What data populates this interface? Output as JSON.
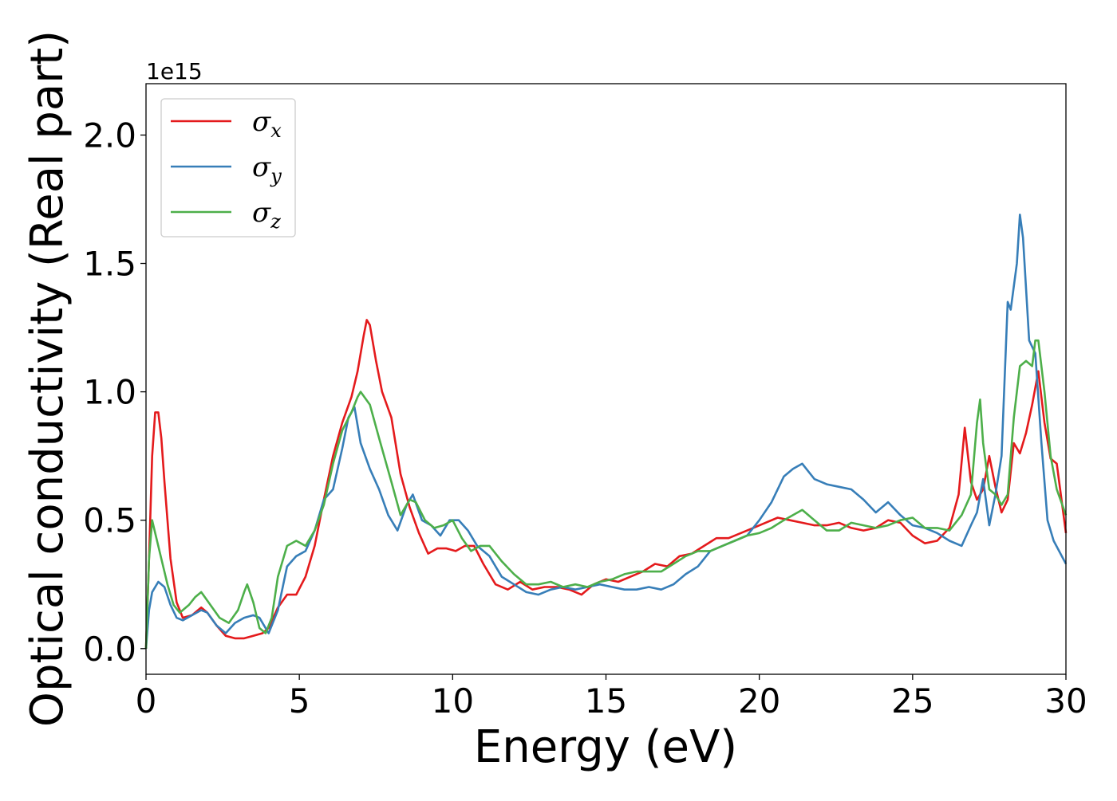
{
  "chart_data": {
    "type": "line",
    "title": "",
    "xlabel": "Energy (eV)",
    "ylabel": "Optical conductivity (Real part)",
    "offset_text": "1e15",
    "xlim": [
      0,
      30
    ],
    "ylim": [
      -0.1,
      2.2
    ],
    "y_scale_factor": "1e15",
    "xticks": [
      "0",
      "5",
      "10",
      "15",
      "20",
      "25",
      "30"
    ],
    "yticks": [
      "0.0",
      "0.5",
      "1.0",
      "1.5",
      "2.0"
    ],
    "xtick_values": [
      0,
      5,
      10,
      15,
      20,
      25,
      30
    ],
    "ytick_values": [
      0.0,
      0.5,
      1.0,
      1.5,
      2.0
    ],
    "grid": false,
    "legend_position": "top-left",
    "series": [
      {
        "name": "σx",
        "base": "σ",
        "sub": "x",
        "color": "#e41a1c",
        "x": [
          0,
          0.1,
          0.2,
          0.3,
          0.4,
          0.5,
          0.6,
          0.8,
          1.0,
          1.2,
          1.5,
          1.8,
          2.0,
          2.3,
          2.6,
          2.9,
          3.2,
          3.5,
          3.8,
          4.0,
          4.3,
          4.6,
          4.9,
          5.2,
          5.5,
          5.8,
          6.1,
          6.4,
          6.7,
          6.9,
          7.1,
          7.2,
          7.3,
          7.5,
          7.7,
          8.0,
          8.3,
          8.6,
          8.9,
          9.2,
          9.5,
          9.8,
          10.1,
          10.4,
          10.7,
          11.0,
          11.4,
          11.8,
          12.2,
          12.6,
          13.0,
          13.4,
          13.8,
          14.2,
          14.6,
          15.0,
          15.4,
          15.8,
          16.2,
          16.6,
          17.0,
          17.4,
          17.8,
          18.2,
          18.6,
          19.0,
          19.4,
          19.8,
          20.2,
          20.6,
          21.0,
          21.4,
          21.8,
          22.2,
          22.6,
          23.0,
          23.4,
          23.8,
          24.2,
          24.6,
          25.0,
          25.4,
          25.8,
          26.2,
          26.5,
          26.7,
          26.9,
          27.1,
          27.3,
          27.5,
          27.7,
          27.9,
          28.1,
          28.3,
          28.5,
          28.7,
          28.9,
          29.1,
          29.3,
          29.5,
          29.7,
          30.0
        ],
        "y": [
          0.0,
          0.35,
          0.75,
          0.92,
          0.92,
          0.82,
          0.65,
          0.35,
          0.18,
          0.12,
          0.13,
          0.16,
          0.14,
          0.09,
          0.05,
          0.04,
          0.04,
          0.05,
          0.06,
          0.08,
          0.16,
          0.21,
          0.21,
          0.28,
          0.4,
          0.58,
          0.75,
          0.88,
          0.98,
          1.08,
          1.22,
          1.28,
          1.26,
          1.12,
          1.0,
          0.9,
          0.68,
          0.55,
          0.45,
          0.37,
          0.39,
          0.39,
          0.38,
          0.4,
          0.4,
          0.33,
          0.25,
          0.23,
          0.26,
          0.23,
          0.24,
          0.24,
          0.23,
          0.21,
          0.25,
          0.27,
          0.26,
          0.28,
          0.3,
          0.33,
          0.32,
          0.36,
          0.37,
          0.4,
          0.43,
          0.43,
          0.45,
          0.47,
          0.49,
          0.51,
          0.5,
          0.49,
          0.48,
          0.48,
          0.49,
          0.47,
          0.46,
          0.47,
          0.5,
          0.49,
          0.44,
          0.41,
          0.42,
          0.47,
          0.6,
          0.86,
          0.65,
          0.58,
          0.62,
          0.75,
          0.63,
          0.53,
          0.58,
          0.8,
          0.76,
          0.84,
          0.95,
          1.08,
          0.88,
          0.74,
          0.72,
          0.45
        ]
      },
      {
        "name": "σy",
        "base": "σ",
        "sub": "y",
        "color": "#377eb8",
        "x": [
          0,
          0.1,
          0.2,
          0.4,
          0.6,
          0.8,
          1.0,
          1.2,
          1.5,
          1.8,
          2.0,
          2.3,
          2.6,
          2.9,
          3.2,
          3.5,
          3.7,
          4.0,
          4.3,
          4.6,
          4.9,
          5.2,
          5.5,
          5.8,
          6.1,
          6.4,
          6.6,
          6.8,
          7.0,
          7.3,
          7.6,
          7.9,
          8.2,
          8.5,
          8.7,
          9.0,
          9.3,
          9.6,
          9.9,
          10.2,
          10.5,
          10.8,
          11.2,
          11.6,
          12.0,
          12.4,
          12.8,
          13.2,
          13.6,
          14.0,
          14.4,
          14.8,
          15.2,
          15.6,
          16.0,
          16.4,
          16.8,
          17.2,
          17.6,
          18.0,
          18.4,
          18.8,
          19.2,
          19.6,
          20.0,
          20.4,
          20.8,
          21.1,
          21.4,
          21.8,
          22.2,
          22.6,
          23.0,
          23.4,
          23.8,
          24.2,
          24.6,
          25.0,
          25.4,
          25.8,
          26.2,
          26.6,
          26.9,
          27.1,
          27.3,
          27.5,
          27.7,
          27.9,
          28.1,
          28.2,
          28.4,
          28.5,
          28.6,
          28.8,
          29.0,
          29.2,
          29.4,
          29.6,
          30.0
        ],
        "y": [
          0.0,
          0.15,
          0.22,
          0.26,
          0.24,
          0.17,
          0.12,
          0.11,
          0.13,
          0.15,
          0.14,
          0.09,
          0.06,
          0.1,
          0.12,
          0.13,
          0.12,
          0.06,
          0.15,
          0.32,
          0.36,
          0.38,
          0.46,
          0.58,
          0.62,
          0.78,
          0.9,
          0.94,
          0.8,
          0.7,
          0.62,
          0.52,
          0.46,
          0.56,
          0.6,
          0.5,
          0.48,
          0.44,
          0.5,
          0.5,
          0.46,
          0.4,
          0.36,
          0.28,
          0.25,
          0.22,
          0.21,
          0.23,
          0.24,
          0.23,
          0.24,
          0.25,
          0.24,
          0.23,
          0.23,
          0.24,
          0.23,
          0.25,
          0.29,
          0.32,
          0.38,
          0.4,
          0.42,
          0.44,
          0.5,
          0.57,
          0.67,
          0.7,
          0.72,
          0.66,
          0.64,
          0.63,
          0.62,
          0.58,
          0.53,
          0.57,
          0.52,
          0.48,
          0.47,
          0.45,
          0.42,
          0.4,
          0.48,
          0.53,
          0.66,
          0.48,
          0.6,
          0.75,
          1.35,
          1.32,
          1.5,
          1.69,
          1.6,
          1.2,
          1.15,
          0.8,
          0.5,
          0.42,
          0.33
        ]
      },
      {
        "name": "σz",
        "base": "σ",
        "sub": "z",
        "color": "#4daf4a",
        "x": [
          0,
          0.1,
          0.2,
          0.3,
          0.5,
          0.7,
          0.9,
          1.1,
          1.4,
          1.6,
          1.8,
          2.1,
          2.4,
          2.7,
          3.0,
          3.2,
          3.3,
          3.5,
          3.7,
          3.9,
          4.1,
          4.3,
          4.6,
          4.9,
          5.2,
          5.5,
          5.8,
          6.1,
          6.4,
          6.7,
          6.9,
          7.0,
          7.3,
          7.6,
          8.0,
          8.3,
          8.6,
          8.8,
          9.1,
          9.4,
          9.7,
          10.0,
          10.3,
          10.6,
          10.9,
          11.2,
          11.6,
          12.0,
          12.4,
          12.8,
          13.2,
          13.6,
          14.0,
          14.4,
          14.8,
          15.2,
          15.6,
          16.0,
          16.4,
          16.8,
          17.2,
          17.6,
          18.0,
          18.4,
          18.8,
          19.2,
          19.6,
          20.0,
          20.4,
          20.8,
          21.1,
          21.4,
          21.8,
          22.2,
          22.6,
          23.0,
          23.4,
          23.8,
          24.2,
          24.6,
          25.0,
          25.4,
          25.8,
          26.2,
          26.6,
          26.9,
          27.1,
          27.2,
          27.3,
          27.5,
          27.7,
          27.9,
          28.1,
          28.3,
          28.5,
          28.7,
          28.9,
          29.0,
          29.1,
          29.3,
          29.5,
          29.7,
          30.0
        ],
        "y": [
          0.0,
          0.35,
          0.5,
          0.45,
          0.35,
          0.25,
          0.17,
          0.14,
          0.17,
          0.2,
          0.22,
          0.17,
          0.12,
          0.1,
          0.15,
          0.22,
          0.25,
          0.18,
          0.08,
          0.06,
          0.12,
          0.28,
          0.4,
          0.42,
          0.4,
          0.46,
          0.56,
          0.72,
          0.85,
          0.92,
          0.98,
          1.0,
          0.95,
          0.82,
          0.65,
          0.52,
          0.58,
          0.57,
          0.5,
          0.47,
          0.48,
          0.5,
          0.43,
          0.38,
          0.4,
          0.4,
          0.34,
          0.29,
          0.25,
          0.25,
          0.26,
          0.24,
          0.25,
          0.24,
          0.26,
          0.27,
          0.29,
          0.3,
          0.3,
          0.3,
          0.33,
          0.36,
          0.38,
          0.38,
          0.4,
          0.42,
          0.44,
          0.45,
          0.47,
          0.5,
          0.52,
          0.54,
          0.5,
          0.46,
          0.46,
          0.49,
          0.48,
          0.47,
          0.48,
          0.5,
          0.51,
          0.47,
          0.47,
          0.46,
          0.52,
          0.6,
          0.88,
          0.97,
          0.8,
          0.62,
          0.6,
          0.56,
          0.6,
          0.9,
          1.1,
          1.12,
          1.1,
          1.2,
          1.2,
          1.0,
          0.75,
          0.62,
          0.52
        ]
      }
    ]
  }
}
